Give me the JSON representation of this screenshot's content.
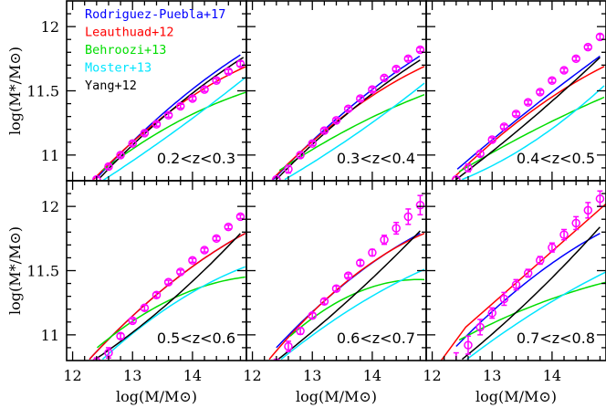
{
  "chart_data": {
    "type": "line",
    "layout": "2x3 panels, shared axes",
    "xlabel": "log(M/M⊙)",
    "ylabel": "log(M*/M⊙)",
    "xlim": [
      11.9,
      14.9
    ],
    "ylim": [
      10.8,
      12.2
    ],
    "x_ticks": [
      "12",
      "13",
      "14"
    ],
    "x_tick_values": [
      12,
      13,
      14
    ],
    "y_ticks": [
      "11",
      "11.5",
      "12"
    ],
    "y_tick_values": [
      11,
      11.5,
      12
    ],
    "grid": false,
    "legend_placement": "top-left of first panel",
    "series_styles": [
      {
        "name": "Rodriguez-Puebla+17",
        "color": "#0000ff"
      },
      {
        "name": "Leauthuad+12",
        "color": "#ff0000"
      },
      {
        "name": "Behroozi+13",
        "color": "#00dd00"
      },
      {
        "name": "Moster+13",
        "color": "#00e5ff"
      },
      {
        "name": "Yang+12",
        "color": "#000000"
      }
    ],
    "data_color": "#ff00ff",
    "panels": [
      {
        "label": "0.2<z<0.3",
        "data": {
          "x": [
            12.4,
            12.6,
            12.8,
            13.0,
            13.2,
            13.4,
            13.6,
            13.8,
            14.0,
            14.2,
            14.4,
            14.6,
            14.8
          ],
          "y": [
            10.81,
            10.91,
            11.0,
            11.09,
            11.17,
            11.24,
            11.31,
            11.38,
            11.44,
            11.51,
            11.58,
            11.65,
            11.71
          ],
          "err": [
            0.015,
            0.015,
            0.015,
            0.015,
            0.015,
            0.015,
            0.015,
            0.015,
            0.015,
            0.015,
            0.015,
            0.015,
            0.02
          ]
        },
        "models": [
          [
            [
              12.4,
              10.82
            ],
            [
              13.6,
              11.36
            ],
            [
              14.8,
              11.78
            ]
          ],
          [
            [
              12.35,
              10.81
            ],
            [
              13.6,
              11.33
            ],
            [
              14.9,
              11.69
            ]
          ],
          [
            [
              12.5,
              10.88
            ],
            [
              13.6,
              11.22
            ],
            [
              14.9,
              11.49
            ]
          ],
          [
            [
              12.5,
              10.8
            ],
            [
              13.6,
              11.15
            ],
            [
              14.9,
              11.61
            ]
          ],
          [
            [
              12.45,
              10.82
            ],
            [
              13.6,
              11.33
            ],
            [
              14.85,
              11.76
            ]
          ]
        ]
      },
      {
        "label": "0.3<z<0.4",
        "data": {
          "x": [
            12.4,
            12.6,
            12.8,
            13.0,
            13.2,
            13.4,
            13.6,
            13.8,
            14.0,
            14.2,
            14.4,
            14.6,
            14.8
          ],
          "y": [
            10.81,
            10.89,
            11.0,
            11.09,
            11.19,
            11.27,
            11.36,
            11.44,
            11.51,
            11.6,
            11.67,
            11.75,
            11.82
          ],
          "err": [
            0.02,
            0.03,
            0.02,
            0.015,
            0.015,
            0.015,
            0.015,
            0.015,
            0.015,
            0.015,
            0.015,
            0.015,
            0.015
          ]
        },
        "models": [
          [
            [
              12.35,
              10.81
            ],
            [
              13.4,
              11.28
            ],
            [
              14.79,
              11.77
            ]
          ],
          [
            [
              12.33,
              10.81
            ],
            [
              13.4,
              11.26
            ],
            [
              14.87,
              11.69
            ]
          ],
          [
            [
              12.45,
              10.88
            ],
            [
              13.4,
              11.15
            ],
            [
              14.87,
              11.47
            ]
          ],
          [
            [
              12.54,
              10.81
            ],
            [
              13.4,
              11.06
            ],
            [
              14.87,
              11.56
            ]
          ],
          [
            [
              12.4,
              10.81
            ],
            [
              13.4,
              11.25
            ],
            [
              14.8,
              11.74
            ]
          ]
        ]
      },
      {
        "label": "0.4<z<0.5",
        "data": {
          "x": [
            12.4,
            12.6,
            12.8,
            13.0,
            13.2,
            13.4,
            13.6,
            13.8,
            14.0,
            14.2,
            14.4,
            14.6,
            14.8
          ],
          "y": [
            10.81,
            10.9,
            11.01,
            11.12,
            11.22,
            11.32,
            11.41,
            11.49,
            11.58,
            11.66,
            11.75,
            11.84,
            11.92
          ],
          "err": [
            0.02,
            0.03,
            0.02,
            0.015,
            0.015,
            0.015,
            0.015,
            0.015,
            0.015,
            0.015,
            0.015,
            0.015,
            0.02
          ]
        },
        "models": [
          [
            [
              12.42,
              10.89
            ],
            [
              13.4,
              11.27
            ],
            [
              14.8,
              11.77
            ]
          ],
          [
            [
              12.33,
              10.81
            ],
            [
              13.4,
              11.25
            ],
            [
              14.87,
              11.69
            ]
          ],
          [
            [
              12.45,
              10.87
            ],
            [
              13.4,
              11.12
            ],
            [
              14.87,
              11.45
            ]
          ],
          [
            [
              12.5,
              10.81
            ],
            [
              13.4,
              11.02
            ],
            [
              14.87,
              11.54
            ]
          ],
          [
            [
              12.4,
              10.81
            ],
            [
              13.4,
              11.18
            ],
            [
              14.8,
              11.76
            ]
          ]
        ]
      },
      {
        "label": "0.5<z<0.6",
        "data": {
          "x": [
            12.4,
            12.6,
            12.8,
            13.0,
            13.2,
            13.4,
            13.6,
            13.8,
            14.0,
            14.2,
            14.4,
            14.6,
            14.8
          ],
          "y": [
            10.79,
            10.86,
            10.99,
            11.11,
            11.21,
            11.31,
            11.41,
            11.49,
            11.58,
            11.66,
            11.75,
            11.84,
            11.92
          ],
          "err": [
            0.03,
            0.04,
            0.02,
            0.015,
            0.02,
            0.02,
            0.015,
            0.015,
            0.015,
            0.015,
            0.015,
            0.015,
            0.015
          ]
        },
        "models": [
          [
            [
              12.28,
              10.81
            ],
            [
              13.22,
              11.24
            ],
            [
              14.88,
              11.79
            ]
          ],
          [
            [
              12.28,
              10.81
            ],
            [
              13.22,
              11.24
            ],
            [
              14.88,
              11.79
            ]
          ],
          [
            [
              12.41,
              10.9
            ],
            [
              13.22,
              11.17
            ],
            [
              14.88,
              11.45
            ]
          ],
          [
            [
              12.5,
              10.81
            ],
            [
              13.22,
              11.09
            ],
            [
              14.88,
              11.53
            ]
          ],
          [
            [
              12.38,
              10.81
            ],
            [
              13.22,
              11.1
            ],
            [
              14.8,
              11.79
            ]
          ]
        ]
      },
      {
        "label": "0.6<z<0.7",
        "data": {
          "x": [
            12.4,
            12.6,
            12.8,
            13.0,
            13.2,
            13.4,
            13.6,
            13.8,
            14.0,
            14.2,
            14.4,
            14.6,
            14.8
          ],
          "y": [
            10.78,
            10.91,
            11.03,
            11.15,
            11.26,
            11.36,
            11.46,
            11.56,
            11.64,
            11.74,
            11.83,
            11.92,
            12.01
          ],
          "err": [
            0.03,
            0.04,
            0.025,
            0.02,
            0.02,
            0.02,
            0.015,
            0.02,
            0.025,
            0.035,
            0.045,
            0.06,
            0.075
          ]
        },
        "models": [
          [
            [
              12.4,
              10.9
            ],
            [
              13.19,
              11.26
            ],
            [
              14.8,
              11.79
            ]
          ],
          [
            [
              12.28,
              10.81
            ],
            [
              13.19,
              11.26
            ],
            [
              14.87,
              11.79
            ]
          ],
          [
            [
              12.63,
              10.99
            ],
            [
              13.19,
              11.19
            ],
            [
              14.87,
              11.43
            ]
          ],
          [
            [
              12.48,
              10.81
            ],
            [
              13.19,
              11.06
            ],
            [
              14.87,
              11.51
            ]
          ],
          [
            [
              12.43,
              10.81
            ],
            [
              13.19,
              11.1
            ],
            [
              14.8,
              11.81
            ]
          ]
        ]
      },
      {
        "label": "0.7<z<0.8",
        "data": {
          "x": [
            12.4,
            12.6,
            12.8,
            13.0,
            13.2,
            13.4,
            13.6,
            13.8,
            14.0,
            14.2,
            14.4,
            14.6,
            14.8
          ],
          "y": [
            10.76,
            10.92,
            11.06,
            11.17,
            11.28,
            11.39,
            11.48,
            11.58,
            11.68,
            11.78,
            11.87,
            11.97,
            12.06
          ],
          "err": [
            0.1,
            0.07,
            0.06,
            0.04,
            0.05,
            0.04,
            0.03,
            0.03,
            0.035,
            0.04,
            0.05,
            0.06,
            0.06
          ]
        },
        "models": [
          [
            [
              12.4,
              10.91
            ],
            [
              13.39,
              11.34
            ],
            [
              14.8,
              11.79
            ]
          ],
          [
            [
              12.15,
              10.8
            ],
            [
              12.56,
              11.06
            ],
            [
              13.39,
              11.4
            ],
            [
              14.9,
              12.02
            ]
          ],
          [
            [
              12.45,
              10.96
            ],
            [
              13.39,
              11.17
            ],
            [
              14.9,
              11.41
            ]
          ],
          [
            [
              12.58,
              10.81
            ],
            [
              13.39,
              11.08
            ],
            [
              14.9,
              11.49
            ]
          ],
          [
            [
              12.5,
              10.81
            ],
            [
              13.39,
              11.17
            ],
            [
              14.8,
              11.84
            ]
          ]
        ]
      }
    ]
  }
}
